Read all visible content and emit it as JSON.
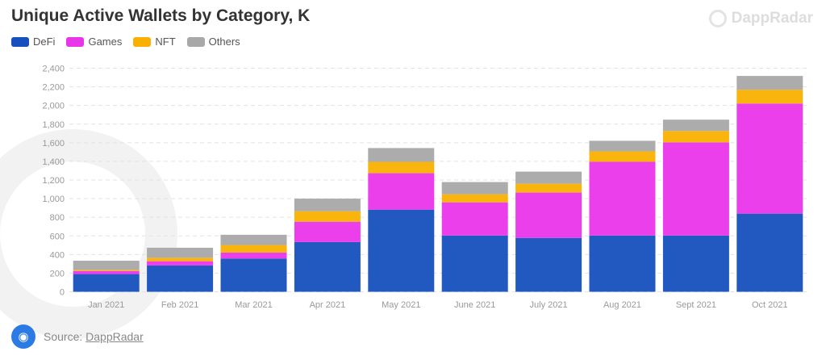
{
  "chart_data": {
    "type": "bar",
    "stacked": true,
    "title": "Unique Active Wallets by Category, K",
    "categories": [
      "Jan 2021",
      "Feb 2021",
      "Mar 2021",
      "Apr 2021",
      "May 2021",
      "June 2021",
      "July 2021",
      "Aug 2021",
      "Sept 2021",
      "Oct 2021"
    ],
    "series": [
      {
        "name": "DeFi",
        "color": "#1650be",
        "values": [
          190,
          282,
          357,
          534,
          882,
          604,
          578,
          604,
          604,
          839
        ]
      },
      {
        "name": "Games",
        "color": "#e935ea",
        "values": [
          33,
          46,
          64,
          218,
          391,
          356,
          487,
          791,
          1000,
          1182
        ]
      },
      {
        "name": "NFT",
        "color": "#f9b000",
        "values": [
          12,
          37,
          81,
          113,
          122,
          87,
          95,
          113,
          122,
          148
        ]
      },
      {
        "name": "Others",
        "color": "#a8a8a8",
        "values": [
          99,
          108,
          110,
          135,
          148,
          131,
          130,
          113,
          122,
          148
        ]
      }
    ],
    "yticks": [
      "0",
      "200",
      "400",
      "600",
      "800",
      "1,000",
      "1,200",
      "1,400",
      "1,600",
      "1,800",
      "2,000",
      "2,200",
      "2,400"
    ],
    "ylim": [
      0,
      2400
    ],
    "grid": true,
    "legend": "top-left",
    "xlabel": "",
    "ylabel": ""
  },
  "brand": "DappRadar",
  "source": {
    "label": "Source:",
    "link": "DappRadar"
  }
}
